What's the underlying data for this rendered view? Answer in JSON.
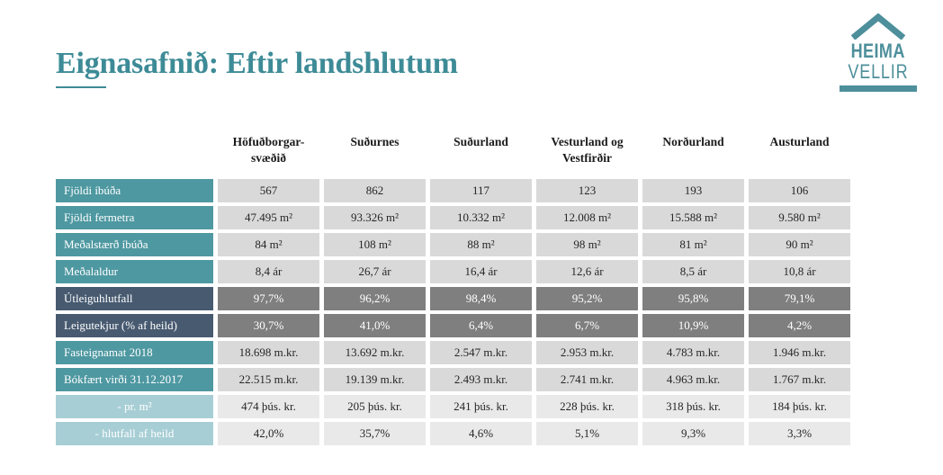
{
  "header": {
    "title": "Eignasafnið: Eftir landshlutum"
  },
  "logo": {
    "line1": "HEIMA",
    "line2": "VELLIR",
    "roof_icon": "house-roof-chevron",
    "color": "#4d8f9b"
  },
  "colors": {
    "title_teal": "#3d8b97",
    "row_label_teal": "#4e98a1",
    "row_label_dark_slate": "#475a70",
    "row_label_light_teal": "#a7ced5",
    "value_cell_gray": "#d9d9d9",
    "value_cell_dark_gray": "#7f7f7f",
    "value_cell_light_gray": "#e9e9e9"
  },
  "table": {
    "columns": [
      "Höfuðborgar-\nsvæðið",
      "Suðurnes",
      "Suðurland",
      "Vesturland og\nVestfirðir",
      "Norðurland",
      "Austurland"
    ],
    "rows": [
      {
        "label": "Fjöldi íbúða",
        "style": "teal",
        "values": [
          "567",
          "862",
          "117",
          "123",
          "193",
          "106"
        ]
      },
      {
        "label": "Fjöldi fermetra",
        "style": "teal",
        "values": [
          "47.495 m²",
          "93.326 m²",
          "10.332 m²",
          "12.008 m²",
          "15.588 m²",
          "9.580 m²"
        ]
      },
      {
        "label": "Meðalstærð íbúða",
        "style": "teal",
        "values": [
          "84 m²",
          "108 m²",
          "88 m²",
          "98 m²",
          "81 m²",
          "90 m²"
        ]
      },
      {
        "label": "Meðalaldur",
        "style": "teal",
        "values": [
          "8,4 ár",
          "26,7 ár",
          "16,4 ár",
          "12,6 ár",
          "8,5 ár",
          "10,8 ár"
        ]
      },
      {
        "label": "Útleiguhlutfall",
        "style": "dark",
        "values": [
          "97,7%",
          "96,2%",
          "98,4%",
          "95,2%",
          "95,8%",
          "79,1%"
        ]
      },
      {
        "label": "Leigutekjur (% af heild)",
        "style": "dark",
        "values": [
          "30,7%",
          "41,0%",
          "6,4%",
          "6,7%",
          "10,9%",
          "4,2%"
        ]
      },
      {
        "label": "Fasteignamat 2018",
        "style": "teal",
        "values": [
          "18.698 m.kr.",
          "13.692 m.kr.",
          "2.547 m.kr.",
          "2.953 m.kr.",
          "4.783 m.kr.",
          "1.946 m.kr."
        ]
      },
      {
        "label": "Bókfært virði 31.12.2017",
        "style": "teal",
        "values": [
          "22.515 m.kr.",
          "19.139 m.kr.",
          "2.493 m.kr.",
          "2.741 m.kr.",
          "4.963 m.kr.",
          "1.767 m.kr."
        ]
      },
      {
        "label": "- pr. m²",
        "style": "light",
        "values": [
          "474 þús. kr.",
          "205 þús. kr.",
          "241 þús. kr.",
          "228 þús. kr.",
          "318 þús. kr.",
          "184 þús. kr."
        ]
      },
      {
        "label": "- hlutfall af heild",
        "style": "light",
        "values": [
          "42,0%",
          "35,7%",
          "4,6%",
          "5,1%",
          "9,3%",
          "3,3%"
        ]
      }
    ]
  }
}
